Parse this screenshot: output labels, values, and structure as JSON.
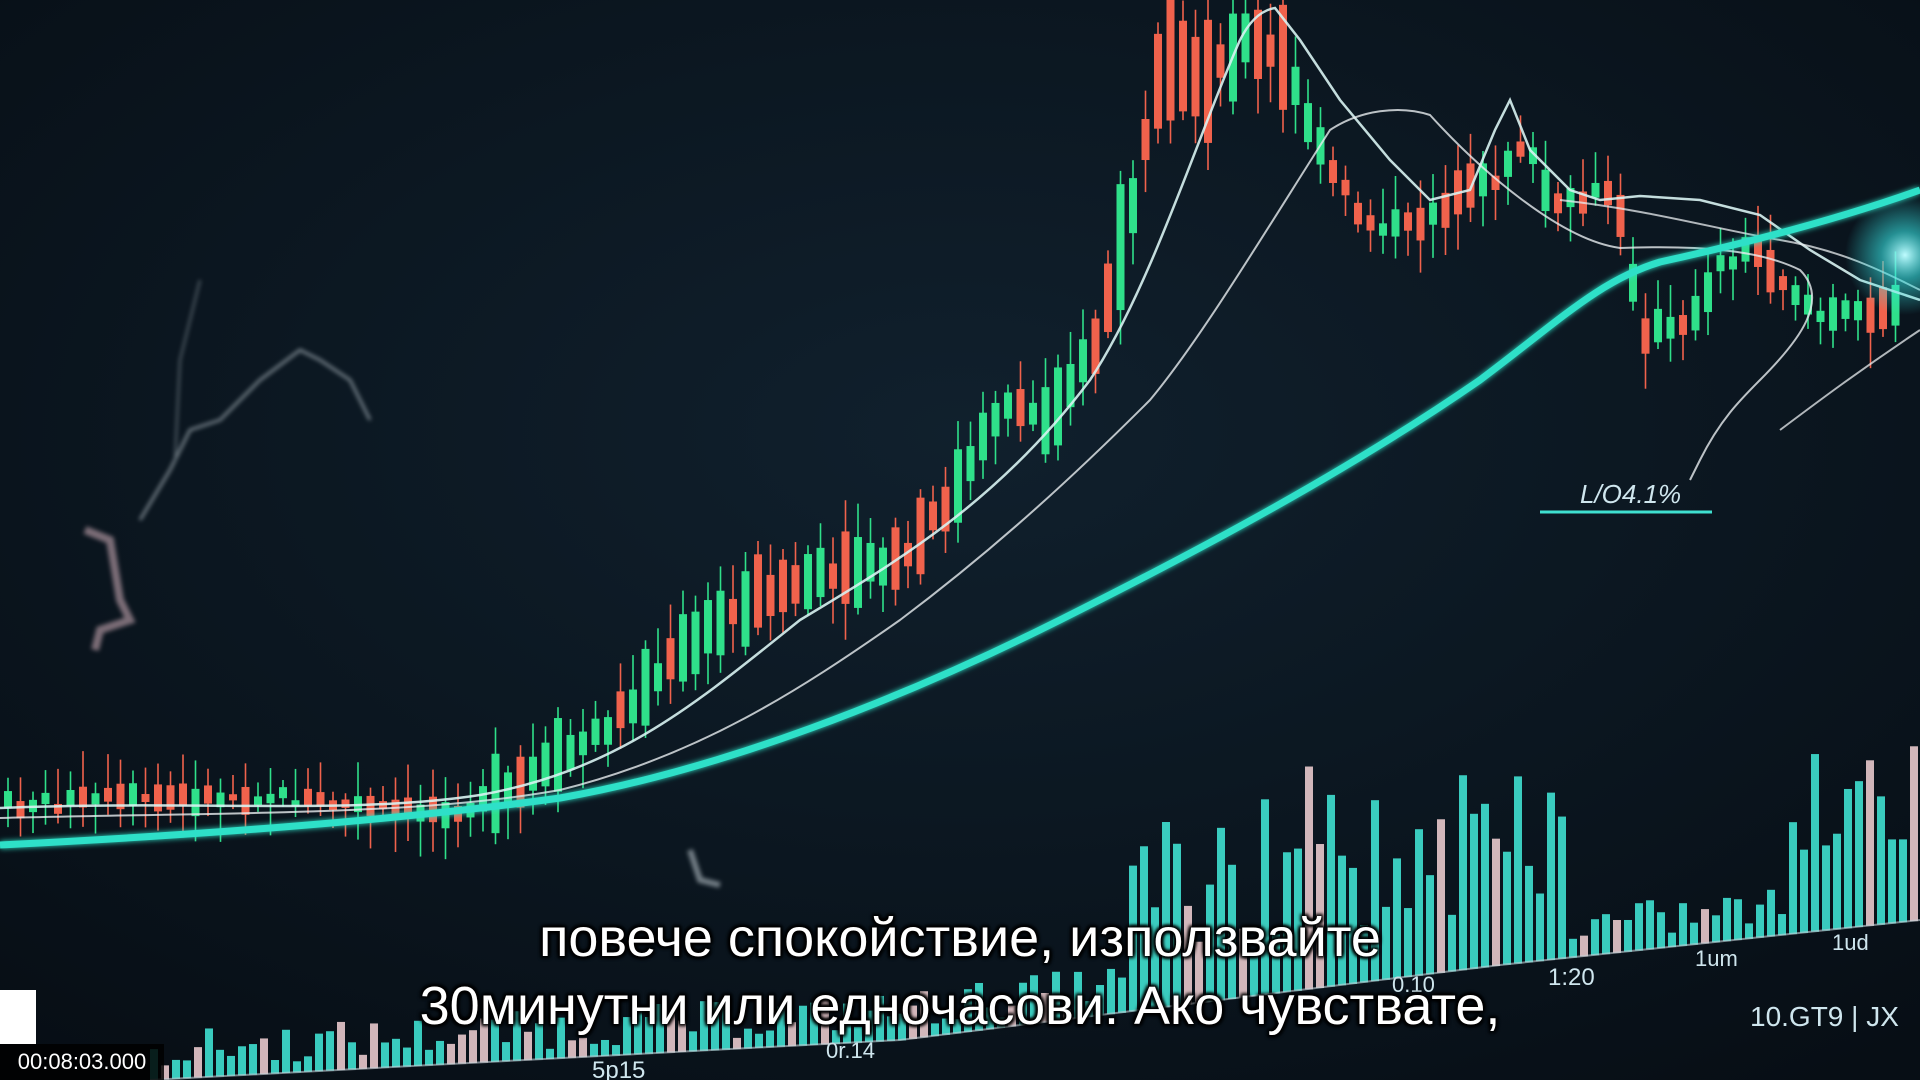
{
  "video": {
    "timestamp": "00:08:03.000",
    "subtitle_line1": "повече спокойствие, използвайте",
    "subtitle_line2": "30минутни или едночасови. Ако чувствате,"
  },
  "scene_labels": {
    "annotation": "L/O4.1%",
    "axis_labels": [
      "1:20",
      "1um",
      "1ud",
      "0.10",
      "5p15",
      "0r.14",
      "10.GT9 | JX"
    ]
  },
  "colors": {
    "background": "#0c1823",
    "bull_candle": "#2fe08a",
    "bear_candle": "#f0624c",
    "trend_line": "#2de0c8",
    "moving_average": "#e9eef0",
    "volume_bar": "#3fe0d0",
    "volume_bar_light": "#e8c9cc"
  }
}
